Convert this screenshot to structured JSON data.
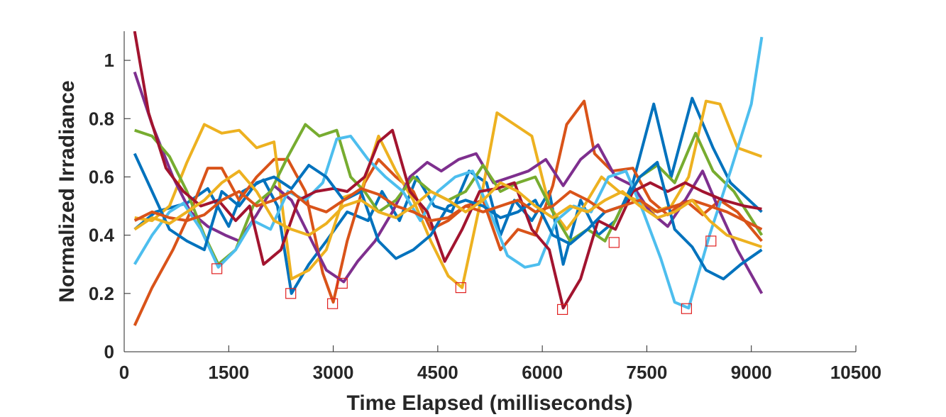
{
  "chart_data": {
    "type": "line",
    "xlabel": "Time Elapsed (milliseconds)",
    "ylabel": "Normalized Irradiance",
    "xlim": [
      0,
      10500
    ],
    "ylim": [
      0,
      1.1
    ],
    "xticks": [
      0,
      1500,
      3000,
      4500,
      6000,
      7500,
      9000,
      10500
    ],
    "yticks": [
      0,
      0.2,
      0.4,
      0.6,
      0.8,
      1
    ],
    "xtick_labels": [
      "0",
      "1500",
      "3000",
      "4500",
      "6000",
      "7500",
      "9000",
      "10500"
    ],
    "ytick_labels": [
      "0",
      "0.2",
      "0.4",
      "0.6",
      "0.8",
      "1"
    ],
    "grid": false,
    "legend": "none",
    "colors": [
      "#0072BD",
      "#D95319",
      "#EDB120",
      "#7E2F8E",
      "#77AC30",
      "#4DBEEE",
      "#A2142F",
      "#0072BD",
      "#D95319",
      "#EDB120"
    ],
    "marker_color": "#E02020",
    "series": [
      {
        "x": [
          150,
          450,
          900,
          1200,
          1500,
          1700,
          2000,
          2200,
          2400,
          2650,
          2900,
          3200,
          3500,
          3700,
          3950,
          4200,
          4450,
          4700,
          4950,
          5200,
          5400,
          5600,
          5850,
          6100,
          6300,
          6550,
          6800,
          7050,
          7300,
          7600,
          7850,
          8150,
          8450,
          8700,
          9150
        ],
        "y": [
          0.42,
          0.48,
          0.51,
          0.56,
          0.43,
          0.55,
          0.59,
          0.5,
          0.2,
          0.3,
          0.38,
          0.48,
          0.45,
          0.55,
          0.45,
          0.6,
          0.5,
          0.48,
          0.62,
          0.58,
          0.4,
          0.52,
          0.45,
          0.55,
          0.3,
          0.52,
          0.4,
          0.45,
          0.58,
          0.85,
          0.6,
          0.87,
          0.7,
          0.58,
          0.48
        ]
      },
      {
        "x": [
          150,
          400,
          700,
          950,
          1200,
          1400,
          1650,
          1900,
          2150,
          2350,
          2600,
          2850,
          3000,
          3200,
          3450,
          3650,
          3900,
          4150,
          4400,
          4650,
          4900,
          5150,
          5400,
          5650,
          5900,
          6150,
          6350,
          6600,
          6750,
          7000,
          7300,
          7550,
          7800,
          8050,
          8300,
          8550,
          8800,
          9150
        ],
        "y": [
          0.09,
          0.22,
          0.35,
          0.48,
          0.63,
          0.63,
          0.52,
          0.6,
          0.66,
          0.66,
          0.55,
          0.27,
          0.17,
          0.38,
          0.58,
          0.66,
          0.6,
          0.55,
          0.42,
          0.45,
          0.5,
          0.52,
          0.35,
          0.42,
          0.4,
          0.57,
          0.78,
          0.86,
          0.68,
          0.62,
          0.63,
          0.52,
          0.47,
          0.52,
          0.47,
          0.52,
          0.48,
          0.38
        ]
      },
      {
        "x": [
          150,
          400,
          650,
          900,
          1150,
          1400,
          1650,
          1900,
          2150,
          2400,
          2650,
          2900,
          3150,
          3400,
          3650,
          3900,
          4150,
          4400,
          4650,
          4850,
          5100,
          5350,
          5600,
          5850,
          6100,
          6350,
          6600,
          6850,
          7100,
          7350,
          7600,
          7850,
          8100,
          8350,
          8550,
          8800,
          9150
        ],
        "y": [
          0.46,
          0.45,
          0.5,
          0.65,
          0.78,
          0.75,
          0.76,
          0.7,
          0.72,
          0.25,
          0.28,
          0.35,
          0.53,
          0.55,
          0.74,
          0.62,
          0.52,
          0.38,
          0.26,
          0.22,
          0.5,
          0.82,
          0.78,
          0.74,
          0.5,
          0.42,
          0.5,
          0.6,
          0.55,
          0.52,
          0.48,
          0.5,
          0.6,
          0.86,
          0.85,
          0.7,
          0.67
        ]
      },
      {
        "x": [
          150,
          400,
          700,
          950,
          1200,
          1450,
          1650,
          1900,
          2150,
          2400,
          2650,
          2900,
          3150,
          3350,
          3600,
          3850,
          4100,
          4350,
          4550,
          4800,
          5050,
          5300,
          5550,
          5800,
          6050,
          6300,
          6550,
          6800,
          7050,
          7300,
          7550,
          7800,
          8050,
          8300,
          8550,
          8800,
          9150
        ],
        "y": [
          0.96,
          0.78,
          0.6,
          0.48,
          0.43,
          0.4,
          0.38,
          0.47,
          0.57,
          0.52,
          0.4,
          0.28,
          0.24,
          0.31,
          0.38,
          0.48,
          0.6,
          0.65,
          0.62,
          0.66,
          0.68,
          0.58,
          0.6,
          0.62,
          0.66,
          0.57,
          0.66,
          0.71,
          0.6,
          0.57,
          0.48,
          0.43,
          0.52,
          0.62,
          0.48,
          0.35,
          0.2
        ]
      },
      {
        "x": [
          150,
          400,
          650,
          900,
          1150,
          1350,
          1600,
          1850,
          2100,
          2350,
          2600,
          2800,
          3050,
          3250,
          3450,
          3650,
          3900,
          4150,
          4400,
          4650,
          4900,
          5150,
          5400,
          5650,
          5900,
          6150,
          6400,
          6650,
          6900,
          7150,
          7400,
          7650,
          7900,
          8200,
          8450,
          8750,
          9150
        ],
        "y": [
          0.76,
          0.74,
          0.67,
          0.55,
          0.4,
          0.3,
          0.35,
          0.5,
          0.55,
          0.67,
          0.78,
          0.74,
          0.76,
          0.6,
          0.55,
          0.48,
          0.52,
          0.6,
          0.55,
          0.52,
          0.55,
          0.64,
          0.55,
          0.58,
          0.6,
          0.48,
          0.38,
          0.42,
          0.38,
          0.5,
          0.6,
          0.64,
          0.58,
          0.75,
          0.62,
          0.55,
          0.4
        ]
      },
      {
        "x": [
          150,
          400,
          650,
          850,
          1100,
          1350,
          1600,
          1850,
          2100,
          2350,
          2600,
          2850,
          3050,
          3250,
          3500,
          3750,
          4000,
          4250,
          4500,
          4750,
          5000,
          5250,
          5500,
          5750,
          5950,
          6200,
          6450,
          6700,
          6950,
          7200,
          7450,
          7700,
          7900,
          8100,
          8400,
          8700,
          9000,
          9150
        ],
        "y": [
          0.3,
          0.4,
          0.48,
          0.51,
          0.42,
          0.29,
          0.35,
          0.45,
          0.42,
          0.55,
          0.52,
          0.58,
          0.73,
          0.74,
          0.66,
          0.6,
          0.55,
          0.45,
          0.55,
          0.6,
          0.62,
          0.48,
          0.33,
          0.29,
          0.3,
          0.45,
          0.5,
          0.48,
          0.6,
          0.62,
          0.48,
          0.32,
          0.17,
          0.15,
          0.4,
          0.62,
          0.85,
          1.08
        ]
      },
      {
        "x": [
          150,
          350,
          600,
          850,
          1100,
          1350,
          1600,
          1800,
          2000,
          2250,
          2500,
          2750,
          3000,
          3200,
          3450,
          3650,
          3850,
          4100,
          4350,
          4600,
          4850,
          5100,
          5350,
          5600,
          5850,
          6100,
          6300,
          6550,
          6800,
          7050,
          7300,
          7550,
          7800,
          8050,
          8300,
          8600,
          8900,
          9150
        ],
        "y": [
          1.1,
          0.82,
          0.63,
          0.55,
          0.5,
          0.52,
          0.45,
          0.5,
          0.3,
          0.35,
          0.52,
          0.55,
          0.56,
          0.55,
          0.6,
          0.72,
          0.76,
          0.55,
          0.48,
          0.31,
          0.42,
          0.55,
          0.56,
          0.58,
          0.42,
          0.35,
          0.15,
          0.25,
          0.45,
          0.42,
          0.55,
          0.58,
          0.55,
          0.58,
          0.55,
          0.52,
          0.5,
          0.49
        ]
      },
      {
        "x": [
          150,
          400,
          650,
          900,
          1150,
          1400,
          1650,
          1900,
          2150,
          2400,
          2650,
          2900,
          3150,
          3400,
          3650,
          3900,
          4150,
          4400,
          4650,
          4900,
          5150,
          5400,
          5650,
          5900,
          6150,
          6400,
          6650,
          6900,
          7150,
          7400,
          7650,
          7900,
          8150,
          8350,
          8600,
          8850,
          9150
        ],
        "y": [
          0.68,
          0.55,
          0.42,
          0.38,
          0.35,
          0.55,
          0.5,
          0.58,
          0.6,
          0.56,
          0.64,
          0.6,
          0.52,
          0.55,
          0.38,
          0.32,
          0.35,
          0.4,
          0.5,
          0.52,
          0.5,
          0.46,
          0.48,
          0.52,
          0.4,
          0.37,
          0.42,
          0.48,
          0.5,
          0.6,
          0.65,
          0.42,
          0.36,
          0.28,
          0.25,
          0.3,
          0.35
        ]
      },
      {
        "x": [
          150,
          400,
          650,
          900,
          1150,
          1400,
          1650,
          1900,
          2150,
          2400,
          2650,
          2900,
          3150,
          3400,
          3650,
          3900,
          4150,
          4400,
          4650,
          4900,
          5150,
          5400,
          5650,
          5900,
          6150,
          6400,
          6650,
          6900,
          7150,
          7400,
          7650,
          7900,
          8150,
          8400,
          8650,
          8900,
          9150
        ],
        "y": [
          0.45,
          0.48,
          0.46,
          0.45,
          0.47,
          0.52,
          0.55,
          0.5,
          0.52,
          0.55,
          0.5,
          0.48,
          0.52,
          0.56,
          0.54,
          0.5,
          0.48,
          0.45,
          0.46,
          0.5,
          0.48,
          0.5,
          0.52,
          0.48,
          0.5,
          0.55,
          0.52,
          0.48,
          0.5,
          0.52,
          0.48,
          0.5,
          0.52,
          0.5,
          0.48,
          0.45,
          0.42
        ]
      },
      {
        "x": [
          150,
          400,
          650,
          900,
          1150,
          1400,
          1650,
          1900,
          2150,
          2400,
          2650,
          2900,
          3150,
          3400,
          3650,
          3900,
          4150,
          4400,
          4650,
          4900,
          5150,
          5400,
          5650,
          5900,
          6150,
          6400,
          6650,
          6900,
          7150,
          7400,
          7650,
          7900,
          8150,
          8400,
          8650,
          8900,
          9150
        ],
        "y": [
          0.42,
          0.46,
          0.44,
          0.48,
          0.52,
          0.58,
          0.62,
          0.55,
          0.45,
          0.42,
          0.4,
          0.44,
          0.5,
          0.52,
          0.48,
          0.46,
          0.5,
          0.55,
          0.52,
          0.48,
          0.52,
          0.58,
          0.55,
          0.5,
          0.46,
          0.5,
          0.48,
          0.52,
          0.55,
          0.5,
          0.46,
          0.48,
          0.52,
          0.45,
          0.4,
          0.38,
          0.36
        ]
      }
    ],
    "markers": [
      {
        "x": 1330,
        "y": 0.285
      },
      {
        "x": 2390,
        "y": 0.2
      },
      {
        "x": 2990,
        "y": 0.165
      },
      {
        "x": 3130,
        "y": 0.235
      },
      {
        "x": 4830,
        "y": 0.22
      },
      {
        "x": 6290,
        "y": 0.145
      },
      {
        "x": 7030,
        "y": 0.375
      },
      {
        "x": 8070,
        "y": 0.148
      },
      {
        "x": 8420,
        "y": 0.38
      }
    ]
  }
}
